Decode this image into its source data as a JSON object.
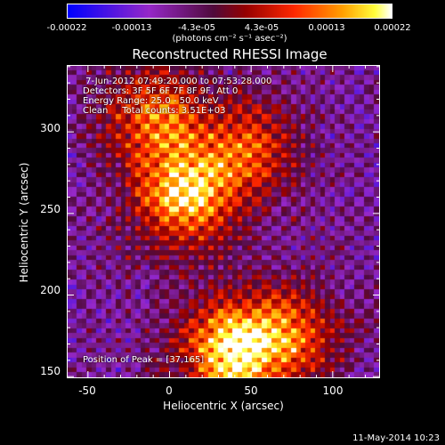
{
  "colorbar": {
    "tick_labels": [
      "-0.00022",
      "-0.00013",
      "-4.3e-05",
      "4.3e-05",
      "0.00013",
      "0.00022"
    ],
    "units_label": "(photons cm⁻² s⁻¹ asec⁻²)",
    "range": [
      -0.00022,
      0.00022
    ],
    "colormap": "blue-purple-red-orange-yellow-white"
  },
  "chart_data": {
    "type": "heatmap",
    "title": "Reconstructed RHESSI Image",
    "xlabel": "Heliocentric X (arcsec)",
    "ylabel": "Heliocentric Y (arcsec)",
    "xlim": [
      -63,
      129
    ],
    "ylim": [
      149,
      341
    ],
    "x_ticks": [
      -50,
      0,
      50,
      100
    ],
    "y_ticks": [
      150,
      200,
      250,
      300
    ],
    "peak": {
      "x": 37,
      "y": 165
    },
    "bright_regions": [
      {
        "x": 10,
        "y": 260,
        "relative_intensity": 0.95
      },
      {
        "x": 37,
        "y": 165,
        "relative_intensity": 1.0
      },
      {
        "x": -10,
        "y": 310,
        "relative_intensity": 0.7
      },
      {
        "x": 50,
        "y": 290,
        "relative_intensity": 0.6
      },
      {
        "x": 75,
        "y": 175,
        "relative_intensity": 0.65
      }
    ]
  },
  "annotation_lines": [
    " 7-Jun-2012 07:49:20.000 to 07:53:28.000",
    "Detectors: 3F 5F 6F 7F 8F 9F, Att 0",
    "Energy Range: 25.0 - 50.0 keV",
    "Clean     Total counts: 3.51E+03"
  ],
  "peak_label": "Position of Peak = [37,165]",
  "datestamp": "11-May-2014 10:23"
}
